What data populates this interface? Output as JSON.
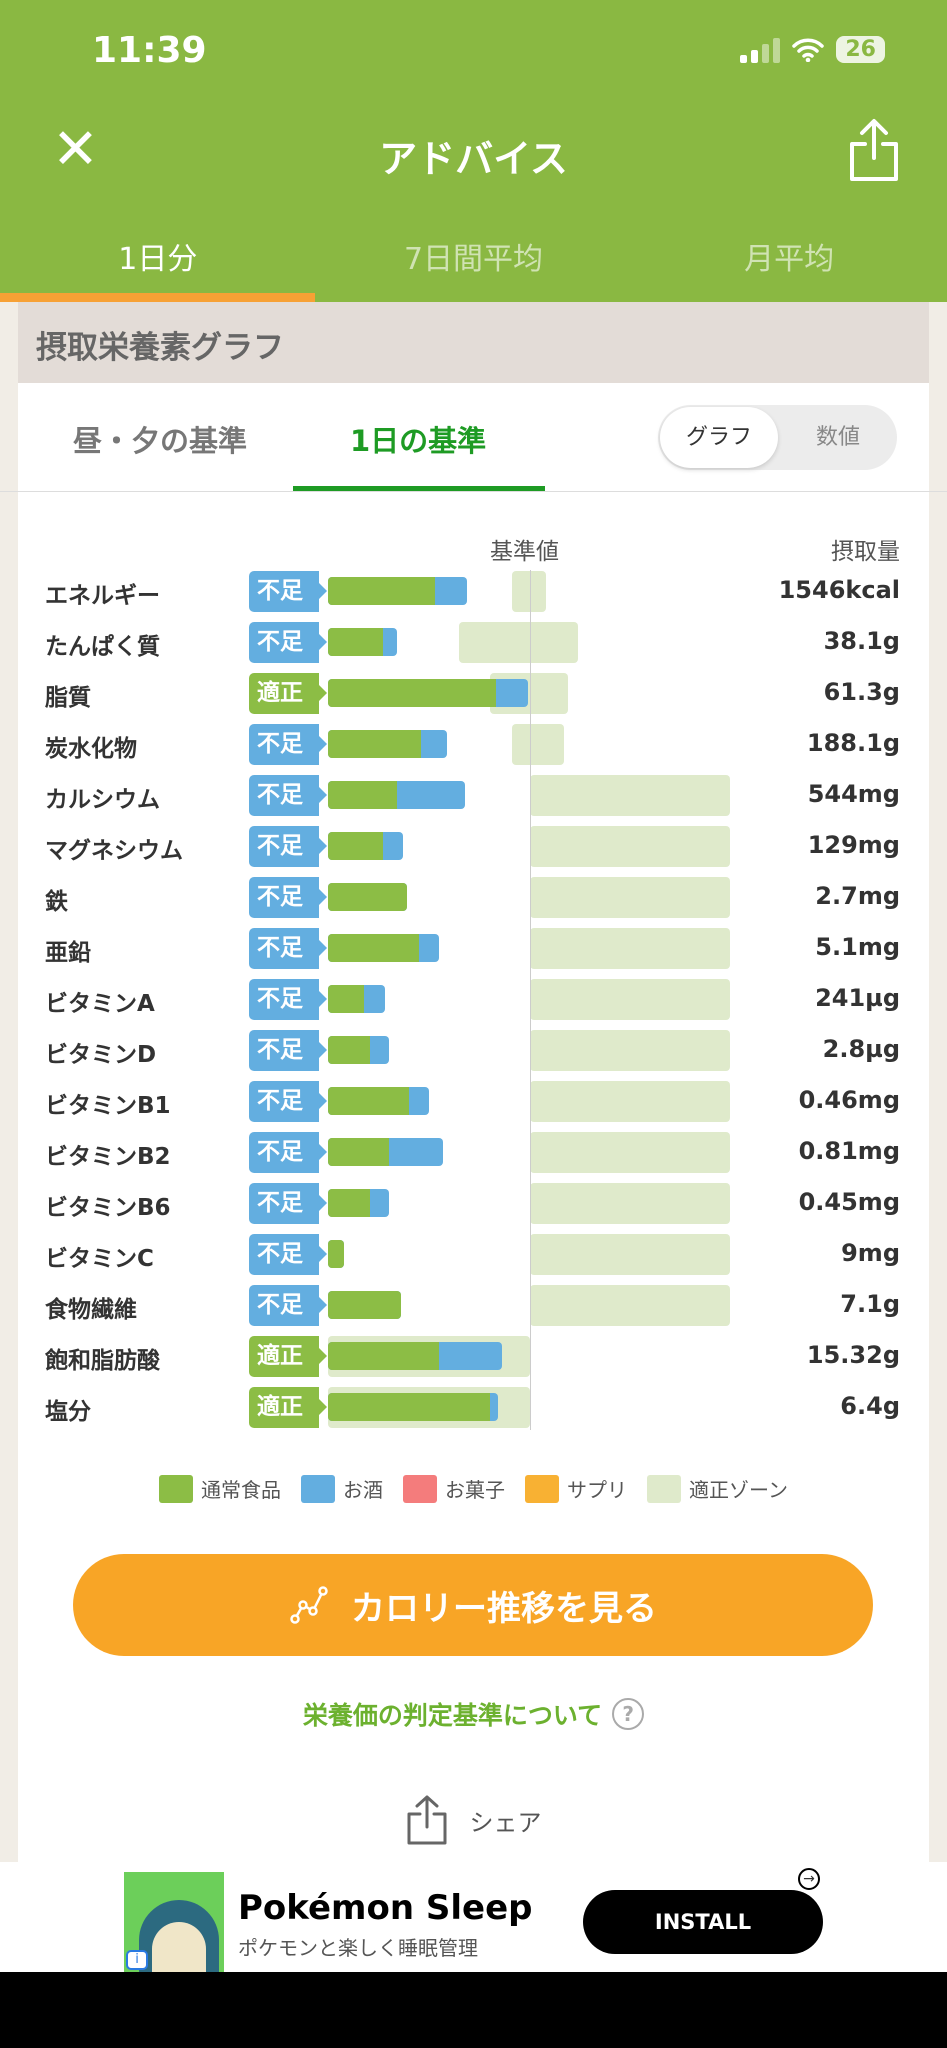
{
  "status": {
    "time": "11:39",
    "battery": "26"
  },
  "header": {
    "title": "アドバイス",
    "tabs": [
      "1日分",
      "7日間平均",
      "月平均"
    ]
  },
  "section": {
    "title": "摂取栄養素グラフ",
    "subtabs": [
      "昼・夕の基準",
      "1日の基準"
    ],
    "toggle": [
      "グラフ",
      "数値"
    ]
  },
  "chart_data": {
    "type": "bar",
    "col_headers": {
      "reference": "基準値",
      "intake": "摂取量"
    },
    "note": "bar values are fractions of the reference value (1.0 = 基準値 line)",
    "colors": {
      "food": "#8cbd45",
      "alcohol": "#63aee0",
      "zone": "#dfeacb",
      "ok": "#8cbd45",
      "low": "#63aee0"
    },
    "rows": [
      {
        "name": "エネルギー",
        "status": "不足",
        "food": 0.53,
        "alcohol": 0.16,
        "zone": [
          0.91,
          1.08
        ],
        "value": "1546kcal"
      },
      {
        "name": "たんぱく質",
        "status": "不足",
        "food": 0.27,
        "alcohol": 0.07,
        "zone": [
          0.65,
          1.24
        ],
        "value": "38.1g"
      },
      {
        "name": "脂質",
        "status": "適正",
        "food": 0.83,
        "alcohol": 0.16,
        "zone": [
          0.8,
          1.19
        ],
        "value": "61.3g"
      },
      {
        "name": "炭水化物",
        "status": "不足",
        "food": 0.46,
        "alcohol": 0.13,
        "zone": [
          0.91,
          1.17
        ],
        "value": "188.1g"
      },
      {
        "name": "カルシウム",
        "status": "不足",
        "food": 0.34,
        "alcohol": 0.34,
        "zone": [
          1,
          1.99
        ],
        "value": "544mg"
      },
      {
        "name": "マグネシウム",
        "status": "不足",
        "food": 0.27,
        "alcohol": 0.1,
        "zone": [
          1,
          1.99
        ],
        "value": "129mg"
      },
      {
        "name": "鉄",
        "status": "不足",
        "food": 0.39,
        "alcohol": 0,
        "zone": [
          1,
          1.99
        ],
        "value": "2.7mg"
      },
      {
        "name": "亜鉛",
        "status": "不足",
        "food": 0.45,
        "alcohol": 0.1,
        "zone": [
          1,
          1.99
        ],
        "value": "5.1mg"
      },
      {
        "name": "ビタミンA",
        "status": "不足",
        "food": 0.18,
        "alcohol": 0.1,
        "zone": [
          1,
          1.99
        ],
        "value": "241µg"
      },
      {
        "name": "ビタミンD",
        "status": "不足",
        "food": 0.21,
        "alcohol": 0.09,
        "zone": [
          1,
          1.99
        ],
        "value": "2.8µg"
      },
      {
        "name": "ビタミンB1",
        "status": "不足",
        "food": 0.4,
        "alcohol": 0.1,
        "zone": [
          1,
          1.99
        ],
        "value": "0.46mg"
      },
      {
        "name": "ビタミンB2",
        "status": "不足",
        "food": 0.3,
        "alcohol": 0.27,
        "zone": [
          1,
          1.99
        ],
        "value": "0.81mg"
      },
      {
        "name": "ビタミンB6",
        "status": "不足",
        "food": 0.21,
        "alcohol": 0.09,
        "zone": [
          1,
          1.99
        ],
        "value": "0.45mg"
      },
      {
        "name": "ビタミンC",
        "status": "不足",
        "food": 0.08,
        "alcohol": 0,
        "zone": [
          1,
          1.99
        ],
        "value": "9mg"
      },
      {
        "name": "食物繊維",
        "status": "不足",
        "food": 0.36,
        "alcohol": 0,
        "zone": [
          1,
          1.99
        ],
        "value": "7.1g"
      },
      {
        "name": "飽和脂肪酸",
        "status": "適正",
        "food": 0.55,
        "alcohol": 0.31,
        "zone": [
          0,
          1
        ],
        "value": "15.32g"
      },
      {
        "name": "塩分",
        "status": "適正",
        "food": 0.8,
        "alcohol": 0.04,
        "zone": [
          0,
          1
        ],
        "value": "6.4g"
      }
    ],
    "legend": [
      {
        "label": "通常食品",
        "color": "#8cbd45"
      },
      {
        "label": "お酒",
        "color": "#63aee0"
      },
      {
        "label": "お菓子",
        "color": "#f47c7c"
      },
      {
        "label": "サプリ",
        "color": "#f8b133"
      },
      {
        "label": "適正ゾーン",
        "color": "#dfeacb"
      }
    ]
  },
  "actions": {
    "calorie_button": "カロリー推移を見る",
    "criteria_link": "栄養価の判定基準について",
    "help": "?",
    "share": "シェア"
  },
  "ad": {
    "title": "Pokémon Sleep",
    "subtitle": "ポケモンと楽しく睡眠管理",
    "install": "INSTALL",
    "info": "i"
  }
}
